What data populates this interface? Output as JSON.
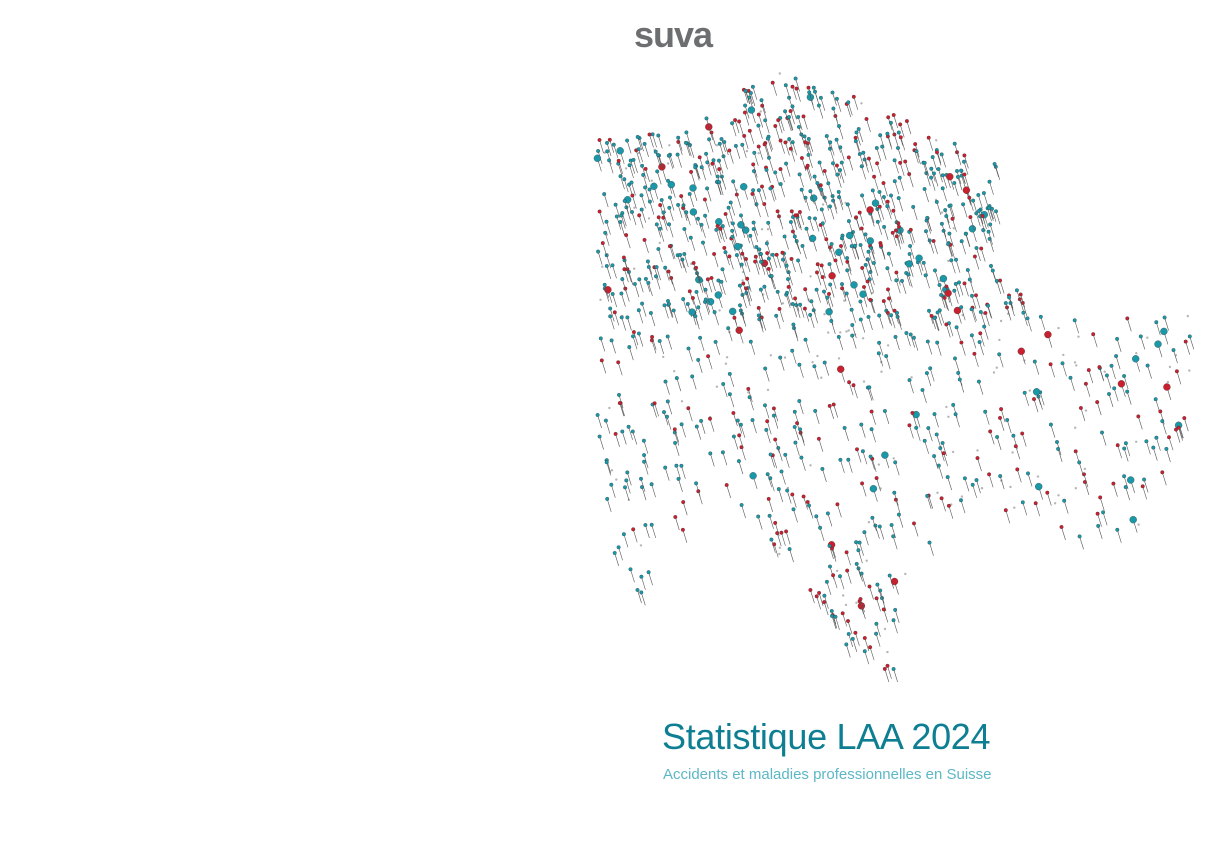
{
  "header": {
    "logo": "suva"
  },
  "cover": {
    "title": "Statistique LAA 2024",
    "subtitle": "Accidents et maladies professionnelles en Suisse"
  }
}
